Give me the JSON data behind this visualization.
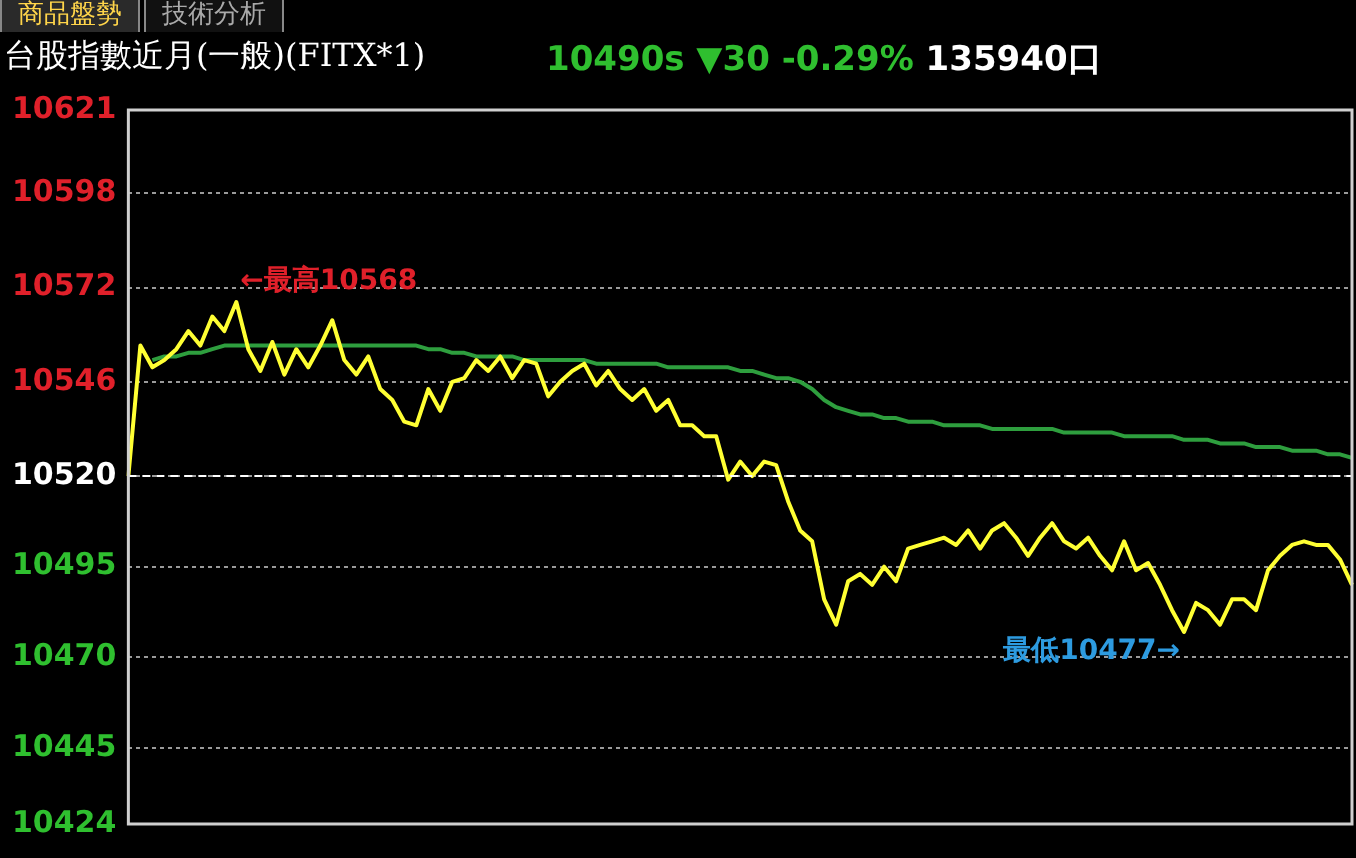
{
  "chart_data": {
    "type": "line",
    "title": "台股指數近月(一般)(FITX*1)",
    "subtitle": "10490s ▼30 -0.29% 135940口",
    "annotations": [
      "商品盤勢",
      "技術分析",
      "←最高10568",
      "最低10477→"
    ],
    "categories": [
      null,
      null,
      null,
      null,
      null,
      null,
      null,
      null,
      null,
      null,
      null,
      null,
      null,
      null,
      null,
      null,
      null,
      null,
      null,
      null,
      null,
      null,
      null,
      null,
      null,
      null,
      null,
      null,
      null,
      null,
      null,
      null,
      null,
      null,
      null,
      null,
      null,
      null,
      null,
      null,
      null,
      null,
      null,
      null,
      null,
      null,
      null,
      null,
      null,
      null,
      null,
      null,
      null,
      null,
      null,
      null,
      null,
      null,
      null,
      null,
      null,
      null,
      null,
      null,
      null,
      null,
      null,
      null,
      null,
      null,
      null,
      null,
      null,
      null,
      null,
      null,
      null,
      null,
      null,
      null,
      null,
      null,
      null,
      null,
      null,
      null,
      null,
      null,
      null,
      null,
      null,
      null,
      null,
      null,
      null,
      null,
      null,
      null,
      null,
      null,
      null,
      null,
      null
    ],
    "series": [
      {
        "color": "#ffff33",
        "values": [
          10520,
          10556,
          10550,
          10552,
          10555,
          10560,
          10556,
          10564,
          10560,
          10568,
          10555,
          10549,
          10557,
          10548,
          10555,
          10550,
          10556,
          10563,
          10552,
          10548,
          10553,
          10544,
          10541,
          10535,
          10534,
          10544,
          10538,
          10546,
          10547,
          10552,
          10549,
          10553,
          10547,
          10552,
          10551,
          10542,
          10546,
          10549,
          10551,
          10545,
          10549,
          10544,
          10541,
          10544,
          10538,
          10541,
          10534,
          10534,
          10531,
          10531,
          10519,
          10524,
          10520,
          10524,
          10523,
          10513,
          10505,
          10502,
          10486,
          10479,
          10491,
          10493,
          10490,
          10495,
          10491,
          10500,
          10501,
          10502,
          10503,
          10501,
          10505,
          10500,
          10505,
          10507,
          10503,
          10498,
          10503,
          10507,
          10502,
          10500,
          10503,
          10498,
          10494,
          10502,
          10494,
          10496,
          10490,
          10483,
          10477,
          10485,
          10483,
          10479,
          10486,
          10486,
          10483,
          10494,
          10498,
          10501,
          10502,
          10501,
          10501,
          10497,
          10490
        ]
      },
      {
        "color": "#2e9e3e",
        "values": [
          null,
          null,
          10552,
          10553,
          10553,
          10554,
          10554,
          10555,
          10556,
          10556,
          10556,
          10556,
          10556,
          10556,
          10556,
          10556,
          10556,
          10556,
          10556,
          10556,
          10556,
          10556,
          10556,
          10556,
          10556,
          10555,
          10555,
          10554,
          10554,
          10553,
          10553,
          10553,
          10553,
          10552,
          10552,
          10552,
          10552,
          10552,
          10552,
          10551,
          10551,
          10551,
          10551,
          10551,
          10551,
          10550,
          10550,
          10550,
          10550,
          10550,
          10550,
          10549,
          10549,
          10548,
          10547,
          10547,
          10546,
          10544,
          10541,
          10539,
          10538,
          10537,
          10537,
          10536,
          10536,
          10535,
          10535,
          10535,
          10534,
          10534,
          10534,
          10534,
          10533,
          10533,
          10533,
          10533,
          10533,
          10533,
          10532,
          10532,
          10532,
          10532,
          10532,
          10531,
          10531,
          10531,
          10531,
          10531,
          10530,
          10530,
          10530,
          10529,
          10529,
          10529,
          10528,
          10528,
          10528,
          10527,
          10527,
          10527,
          10526,
          10526,
          10525
        ]
      }
    ],
    "ylim": [
      10424,
      10621
    ],
    "yticks": [
      10424,
      10445,
      10470,
      10495,
      10520,
      10546,
      10572,
      10598,
      10621
    ],
    "ref_lines": [
      {
        "axis": "y",
        "value": 10520,
        "color": "#ffffff",
        "line_style": "dashed"
      }
    ],
    "grid": "y",
    "legend": false,
    "marker": "none",
    "line_style": "solid",
    "tick_labels": "y"
  }
}
